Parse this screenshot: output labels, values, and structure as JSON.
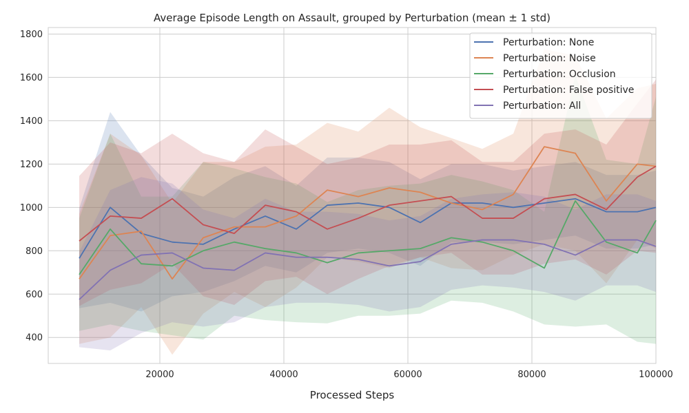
{
  "chart_data": {
    "type": "line",
    "title": "Average Episode Length on Assault, grouped by Perturbation (mean ± 1 std)",
    "xlabel": "Processed Steps",
    "ylabel": "",
    "xlim": [
      2000,
      100000
    ],
    "ylim": [
      280,
      1830
    ],
    "xticks": [
      20000,
      40000,
      60000,
      80000,
      100000
    ],
    "yticks": [
      400,
      600,
      800,
      1000,
      1200,
      1400,
      1600,
      1800
    ],
    "grid": true,
    "legend_position": "top-right",
    "x": [
      7000,
      12000,
      17000,
      22000,
      27000,
      32000,
      37000,
      42000,
      47000,
      52000,
      57000,
      62000,
      67000,
      72000,
      77000,
      82000,
      87000,
      92000,
      97000,
      100000
    ],
    "series": [
      {
        "name": "Perturbation: None",
        "color": "#4c72b0",
        "mean": [
          765,
          1000,
          880,
          840,
          830,
          900,
          960,
          900,
          1010,
          1020,
          1000,
          930,
          1020,
          1020,
          1000,
          1020,
          1040,
          980,
          980,
          1000
        ],
        "std": [
          230,
          440,
          360,
          250,
          220,
          240,
          230,
          200,
          220,
          210,
          210,
          200,
          180,
          180,
          170,
          170,
          170,
          170,
          170,
          170
        ]
      },
      {
        "name": "Perturbation: Noise",
        "color": "#dd8452",
        "mean": [
          670,
          870,
          890,
          670,
          860,
          910,
          910,
          960,
          1080,
          1050,
          1090,
          1070,
          1020,
          990,
          1060,
          1280,
          1250,
          1030,
          1200,
          1190
        ],
        "std": [
          300,
          470,
          350,
          350,
          350,
          300,
          370,
          330,
          310,
          300,
          370,
          300,
          300,
          280,
          280,
          450,
          450,
          380,
          350,
          380
        ]
      },
      {
        "name": "Perturbation: Occlusion",
        "color": "#55a868",
        "mean": [
          690,
          900,
          740,
          730,
          800,
          840,
          810,
          790,
          745,
          790,
          800,
          810,
          860,
          840,
          800,
          720,
          1030,
          840,
          790,
          940
        ],
        "std": [
          260,
          440,
          310,
          320,
          410,
          340,
          330,
          320,
          280,
          290,
          300,
          300,
          290,
          280,
          280,
          260,
          580,
          380,
          410,
          570
        ]
      },
      {
        "name": "Perturbation: False positive",
        "color": "#c44e52",
        "mean": [
          845,
          960,
          950,
          1040,
          920,
          880,
          1010,
          980,
          900,
          950,
          1010,
          1030,
          1050,
          950,
          950,
          1040,
          1060,
          990,
          1140,
          1190
        ],
        "std": [
          300,
          340,
          300,
          300,
          330,
          330,
          350,
          300,
          300,
          280,
          280,
          260,
          260,
          260,
          260,
          300,
          300,
          300,
          340,
          400
        ]
      },
      {
        "name": "Perturbation: All",
        "color": "#8172b3",
        "mean": [
          575,
          710,
          780,
          790,
          720,
          710,
          790,
          770,
          770,
          760,
          730,
          750,
          830,
          850,
          850,
          830,
          780,
          850,
          850,
          820
        ],
        "std": [
          220,
          370,
          360,
          320,
          270,
          240,
          250,
          210,
          210,
          210,
          210,
          210,
          210,
          210,
          220,
          220,
          210,
          210,
          210,
          210
        ]
      }
    ]
  }
}
